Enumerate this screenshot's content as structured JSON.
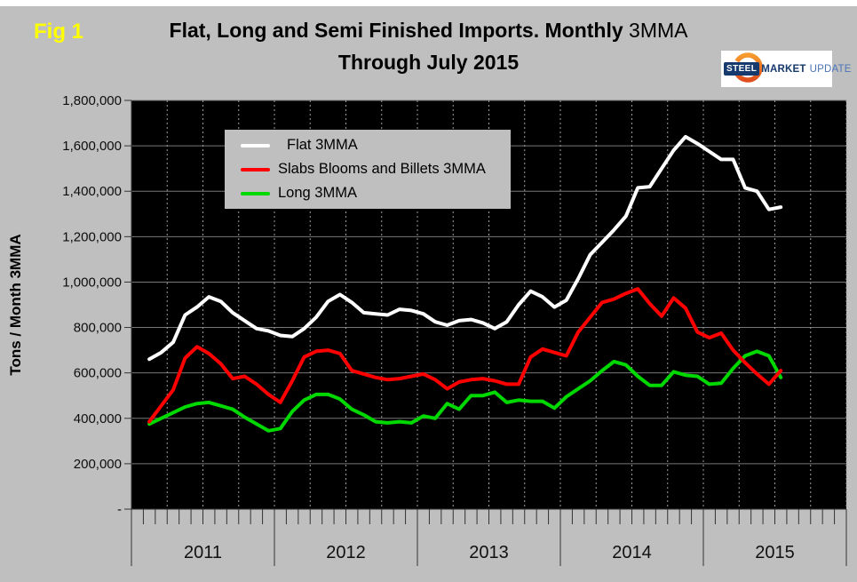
{
  "figure_label": "Fig 1",
  "title": {
    "line1_bold": "Flat, Long and Semi Finished Imports. Monthly",
    "line1_light": "3MMA",
    "line2": "Through July 2015"
  },
  "logo": {
    "word1": "STEEL",
    "word2": "MARKET",
    "word3": "UPDATE"
  },
  "y_axis_title": "Tons / Month 3MMA",
  "colors": {
    "background": "#bfbfbf",
    "plot_background": "#000000",
    "grid_horizontal": "#777777",
    "grid_vertical": "#9e9e9e",
    "axis": "#333333",
    "figure_label": "#ffff00"
  },
  "chart_data": {
    "type": "line",
    "title": "Flat, Long and Semi Finished Imports. Monthly 3MMA Through July 2015",
    "ylabel": "Tons / Month 3MMA",
    "ylim": [
      0,
      1800000
    ],
    "x_unit": "month",
    "x_range_start": "Feb 2011",
    "x_range_end": "Jul 2015",
    "x_axis_years": [
      "2011",
      "2012",
      "2013",
      "2014",
      "2015"
    ],
    "x_axis_span_months": 60,
    "x_first_point_month_index": 1,
    "grid": {
      "horizontal": "solid",
      "vertical": "dashed-quarterly"
    },
    "legend_position": "upper-left-inside",
    "y_ticks": [
      {
        "value": 0,
        "label": "-"
      },
      {
        "value": 200000,
        "label": "200,000"
      },
      {
        "value": 400000,
        "label": "400,000"
      },
      {
        "value": 600000,
        "label": "600,000"
      },
      {
        "value": 800000,
        "label": "800,000"
      },
      {
        "value": 1000000,
        "label": "1,000,000"
      },
      {
        "value": 1200000,
        "label": "1,200,000"
      },
      {
        "value": 1400000,
        "label": "1,400,000"
      },
      {
        "value": 1600000,
        "label": "1,600,000"
      },
      {
        "value": 1800000,
        "label": "1,800,000"
      }
    ],
    "series": [
      {
        "name": "Flat 3MMA",
        "color": "#ffffff",
        "values": [
          660000,
          690000,
          735000,
          855000,
          890000,
          935000,
          915000,
          865000,
          830000,
          795000,
          785000,
          765000,
          760000,
          795000,
          845000,
          915000,
          945000,
          910000,
          865000,
          860000,
          855000,
          880000,
          875000,
          860000,
          825000,
          810000,
          830000,
          835000,
          820000,
          795000,
          825000,
          900000,
          960000,
          935000,
          890000,
          920000,
          1015000,
          1120000,
          1175000,
          1230000,
          1290000,
          1415000,
          1420000,
          1500000,
          1580000,
          1640000,
          1610000,
          1575000,
          1540000,
          1540000,
          1415000,
          1400000,
          1320000,
          1330000
        ]
      },
      {
        "name": "Slabs Blooms and Billets 3MMA",
        "color": "#ff0000",
        "values": [
          385000,
          455000,
          525000,
          665000,
          715000,
          685000,
          640000,
          575000,
          585000,
          550000,
          505000,
          470000,
          565000,
          670000,
          695000,
          700000,
          685000,
          610000,
          595000,
          580000,
          570000,
          575000,
          585000,
          595000,
          570000,
          530000,
          560000,
          570000,
          575000,
          565000,
          550000,
          550000,
          670000,
          705000,
          690000,
          675000,
          780000,
          845000,
          910000,
          925000,
          950000,
          970000,
          905000,
          850000,
          930000,
          885000,
          780000,
          755000,
          775000,
          700000,
          645000,
          595000,
          550000,
          610000
        ]
      },
      {
        "name": "Long 3MMA",
        "color": "#00d900",
        "values": [
          375000,
          400000,
          425000,
          450000,
          465000,
          470000,
          455000,
          440000,
          405000,
          375000,
          345000,
          355000,
          430000,
          480000,
          505000,
          505000,
          485000,
          440000,
          415000,
          385000,
          380000,
          385000,
          380000,
          410000,
          400000,
          465000,
          440000,
          500000,
          500000,
          515000,
          470000,
          480000,
          475000,
          475000,
          445000,
          495000,
          530000,
          565000,
          610000,
          650000,
          635000,
          585000,
          545000,
          545000,
          605000,
          590000,
          585000,
          550000,
          555000,
          620000,
          675000,
          695000,
          675000,
          580000
        ]
      }
    ]
  }
}
